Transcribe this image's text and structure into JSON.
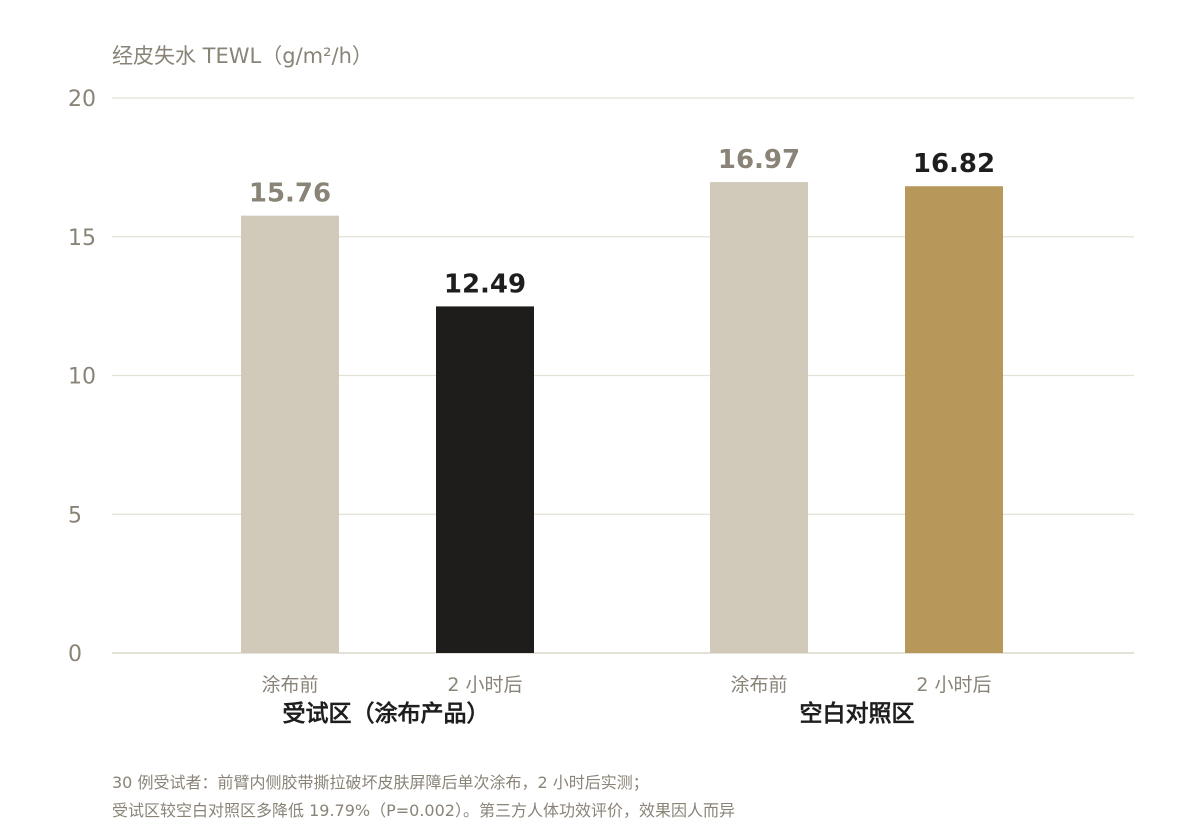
{
  "chart_data": {
    "type": "bar",
    "ylabel": "经皮失水 TEWL（g/m²/h）",
    "ylim": [
      0,
      20
    ],
    "yticks": [
      0,
      5,
      10,
      15,
      20
    ],
    "grid": true,
    "groups": [
      {
        "name": "受试区（涂布产品）",
        "bars": [
          {
            "category": "涂布前",
            "value": 15.76,
            "label": "15.76",
            "color": "#d1cabb",
            "label_color": "#8a8478"
          },
          {
            "category": "2 小时后",
            "value": 12.49,
            "label": "12.49",
            "color": "#1e1d1b",
            "label_color": "#1e1e1e"
          }
        ]
      },
      {
        "name": "空白对照区",
        "bars": [
          {
            "category": "涂布前",
            "value": 16.97,
            "label": "16.97",
            "color": "#d1cabb",
            "label_color": "#8a8478"
          },
          {
            "category": "2 小时后",
            "value": 16.82,
            "label": "16.82",
            "color": "#b8975a",
            "label_color": "#1e1e1e"
          }
        ]
      }
    ]
  },
  "notes": [
    "30 例受试者：前臂内侧胶带撕拉破坏皮肤屏障后单次涂布，2 小时后实测；",
    "受试区较空白对照区多降低 19.79%（P=0.002）。第三方人体功效评价，效果因人而异"
  ]
}
